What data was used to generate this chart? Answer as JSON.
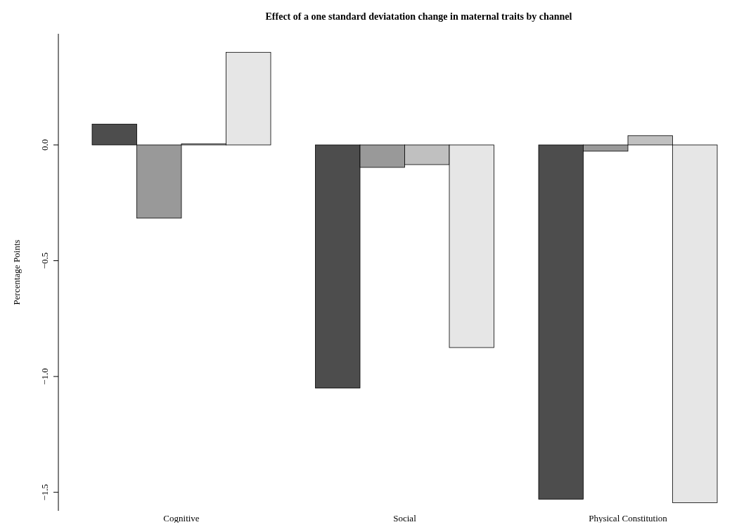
{
  "chart_data": {
    "type": "bar",
    "title": "Effect of a one standard deviatation change in maternal traits by channel",
    "ylabel": "Percentage Points",
    "categories": [
      "Cognitive",
      "Social",
      "Physical Constitution"
    ],
    "series": [
      {
        "color": "#4d4d4d",
        "values": [
          0.09,
          -1.05,
          -1.53
        ]
      },
      {
        "color": "#999999",
        "values": [
          -0.316,
          -0.097,
          -0.027
        ]
      },
      {
        "color": "#c0c0c0",
        "values": [
          0.005,
          -0.085,
          0.04
        ]
      },
      {
        "color": "#e6e6e6",
        "values": [
          0.4,
          -0.875,
          -1.545
        ]
      }
    ],
    "ylim": [
      -1.58,
      0.48
    ],
    "yticks": [
      {
        "value": -1.5,
        "label": "−1.5"
      },
      {
        "value": -1.0,
        "label": "−1.0"
      },
      {
        "value": -0.5,
        "label": "−0.5"
      },
      {
        "value": 0,
        "label": "0.0"
      }
    ],
    "grid": false
  }
}
